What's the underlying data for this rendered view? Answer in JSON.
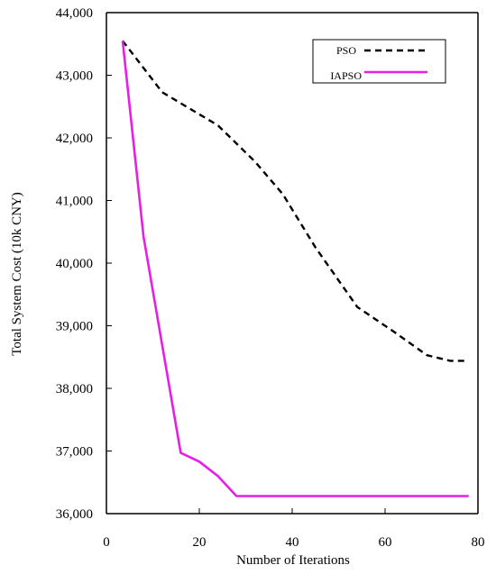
{
  "chart_data": {
    "type": "line",
    "title": "",
    "xlabel": "Number of Iterations",
    "ylabel": "Total System Cost (10k CNY)",
    "xlim": [
      0,
      80
    ],
    "ylim": [
      36000,
      44000
    ],
    "x_ticks": [
      0,
      20,
      40,
      60,
      80
    ],
    "x_tick_labels": [
      "0",
      "20",
      "40",
      "60",
      "80"
    ],
    "y_ticks": [
      36000,
      37000,
      38000,
      39000,
      40000,
      41000,
      42000,
      43000,
      44000
    ],
    "y_tick_labels": [
      "36,000",
      "37,000",
      "38,000",
      "39,000",
      "40,000",
      "41,000",
      "42,000",
      "43,000",
      "44,000"
    ],
    "grid": false,
    "legend_position": "top-right",
    "series": [
      {
        "name": "PSO",
        "color": "#000000",
        "dash": "dashed",
        "points": [
          [
            3.5,
            43550
          ],
          [
            12,
            42730
          ],
          [
            24,
            42200
          ],
          [
            32,
            41620
          ],
          [
            38,
            41100
          ],
          [
            45,
            40250
          ],
          [
            54,
            39300
          ],
          [
            62,
            38900
          ],
          [
            69,
            38530
          ],
          [
            74,
            38440
          ],
          [
            78,
            38440
          ]
        ]
      },
      {
        "name": "IAPSO",
        "color": "#e61ee6",
        "dash": "solid",
        "points": [
          [
            3.5,
            43550
          ],
          [
            8,
            40420
          ],
          [
            16,
            36970
          ],
          [
            20,
            36830
          ],
          [
            24,
            36600
          ],
          [
            28,
            36280
          ],
          [
            78,
            36280
          ]
        ]
      }
    ]
  }
}
